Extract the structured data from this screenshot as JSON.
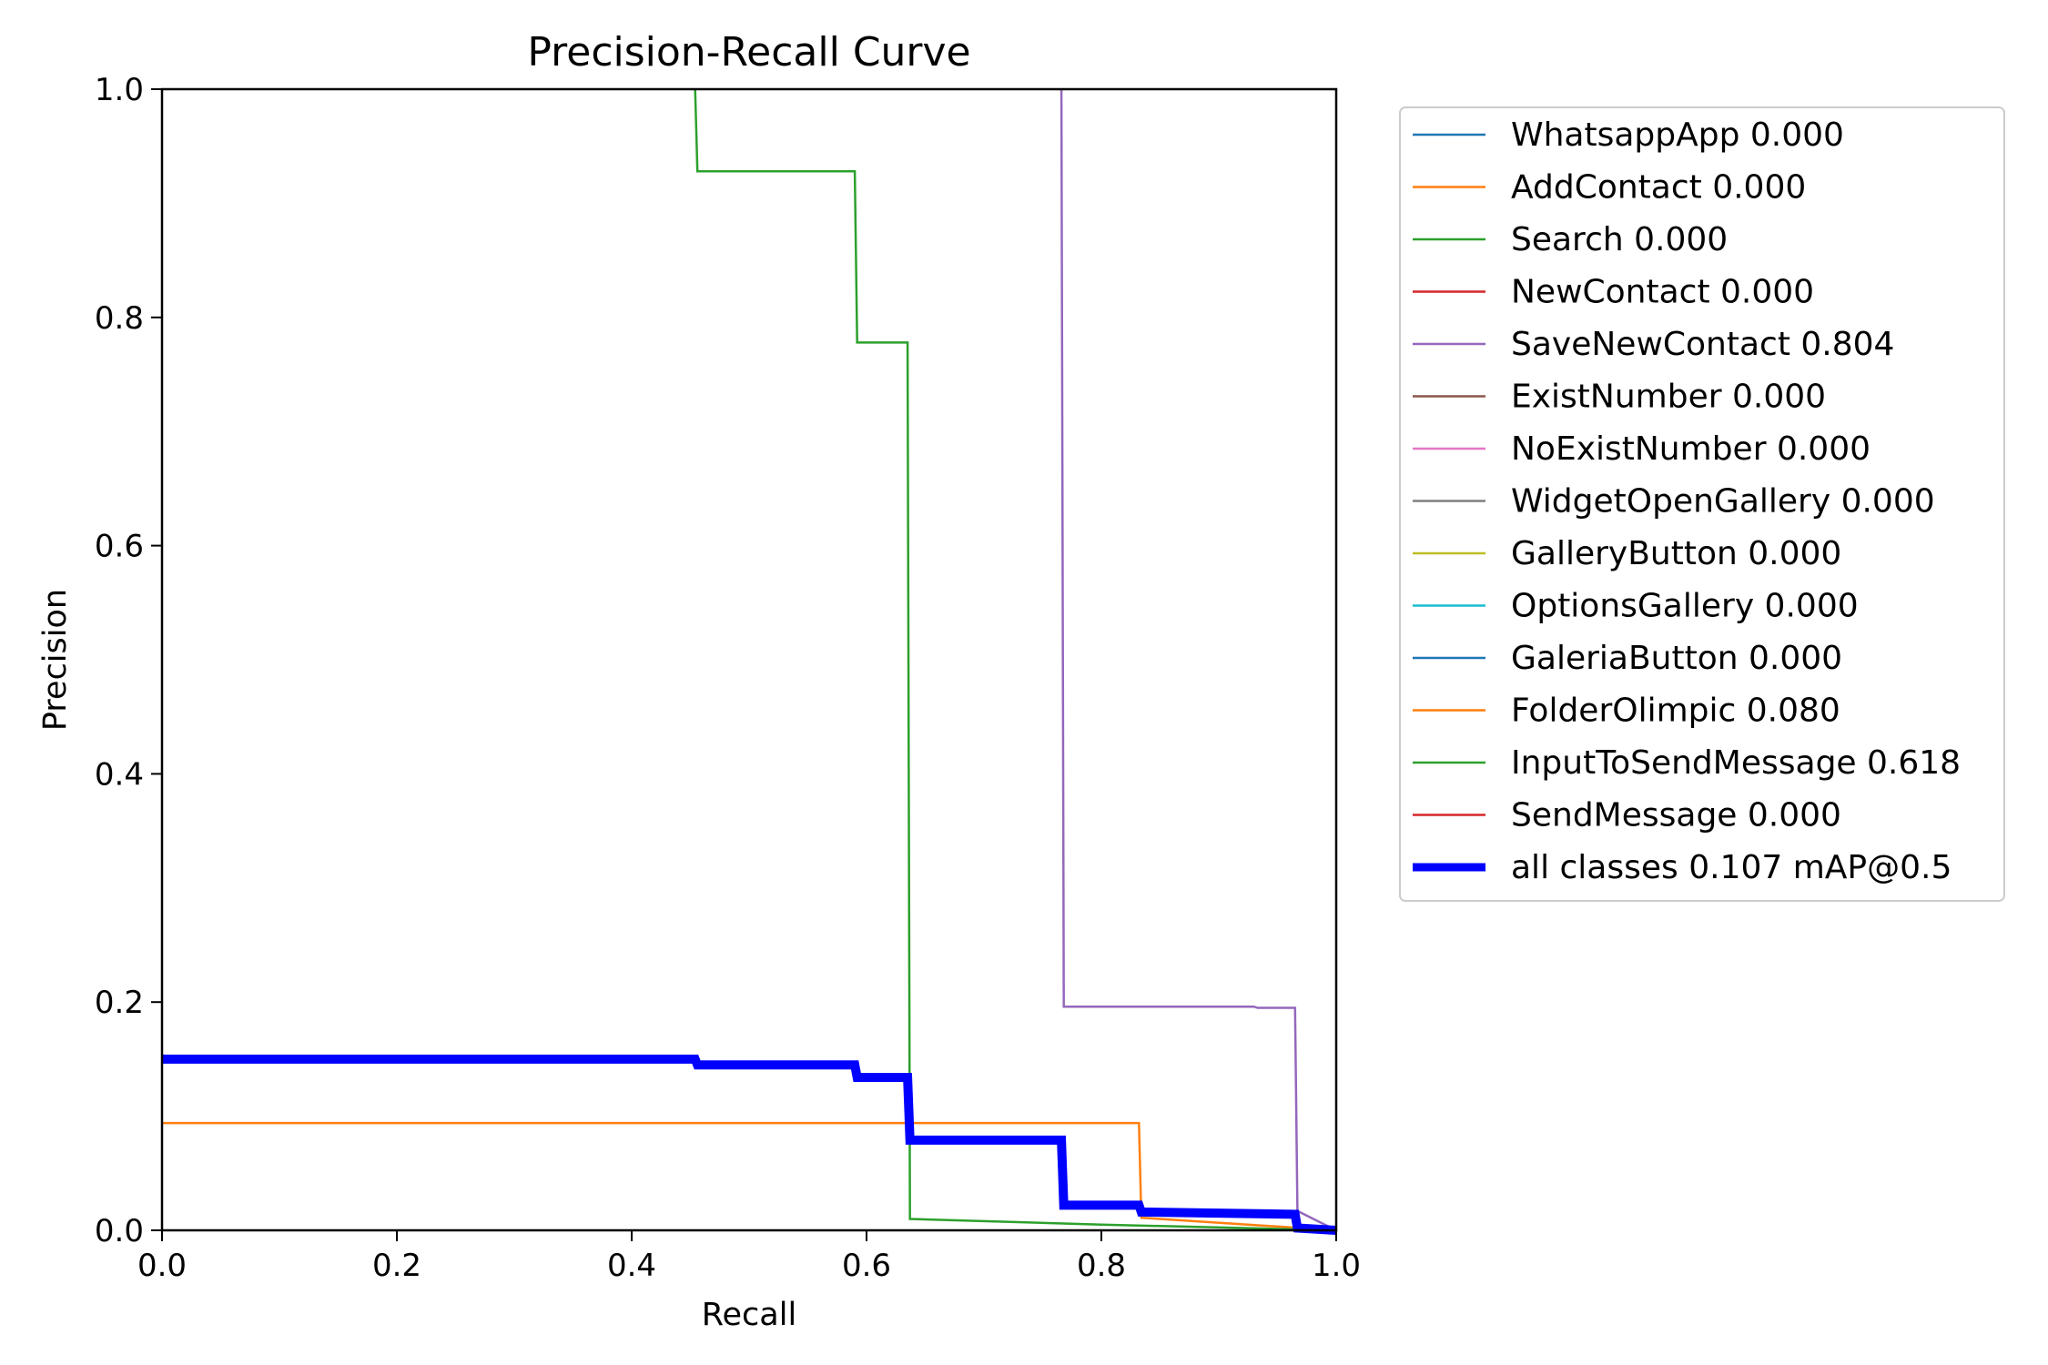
{
  "chart_data": {
    "type": "line",
    "title": "Precision-Recall Curve",
    "xlabel": "Recall",
    "ylabel": "Precision",
    "xlim": [
      0.0,
      1.0
    ],
    "ylim": [
      0.0,
      1.0
    ],
    "x_ticks": [
      "0.0",
      "0.2",
      "0.4",
      "0.6",
      "0.8",
      "1.0"
    ],
    "y_ticks": [
      "0.0",
      "0.2",
      "0.4",
      "0.6",
      "0.8",
      "1.0"
    ],
    "grid": false,
    "legend_position": "outside-right-top",
    "series": [
      {
        "name": "WhatsappApp 0.000",
        "color": "#1f77b4",
        "points": []
      },
      {
        "name": "AddContact 0.000",
        "color": "#ff7f0e",
        "points": []
      },
      {
        "name": "Search 0.000",
        "color": "#2ca02c",
        "points": []
      },
      {
        "name": "NewContact 0.000",
        "color": "#d62728",
        "points": []
      },
      {
        "name": "SaveNewContact 0.804",
        "color": "#9467bd",
        "points": [
          [
            0.766,
            1.0
          ],
          [
            0.768,
            0.196
          ],
          [
            0.93,
            0.196
          ],
          [
            0.933,
            0.195
          ],
          [
            0.965,
            0.195
          ],
          [
            0.967,
            0.017
          ],
          [
            1.0,
            0.0
          ]
        ]
      },
      {
        "name": "ExistNumber 0.000",
        "color": "#8c564b",
        "points": []
      },
      {
        "name": "NoExistNumber 0.000",
        "color": "#e377c2",
        "points": []
      },
      {
        "name": "WidgetOpenGallery 0.000",
        "color": "#7f7f7f",
        "points": []
      },
      {
        "name": "GalleryButton 0.000",
        "color": "#bcbd22",
        "points": []
      },
      {
        "name": "OptionsGallery 0.000",
        "color": "#17becf",
        "points": []
      },
      {
        "name": "GaleriaButton 0.000",
        "color": "#1f77b4",
        "points": []
      },
      {
        "name": "FolderOlimpic 0.080",
        "color": "#ff7f0e",
        "points": [
          [
            0.0,
            0.094
          ],
          [
            0.832,
            0.094
          ],
          [
            0.834,
            0.011
          ],
          [
            1.0,
            0.0
          ]
        ]
      },
      {
        "name": "InputToSendMessage 0.618",
        "color": "#2ca02c",
        "points": [
          [
            0.454,
            1.0
          ],
          [
            0.456,
            0.928
          ],
          [
            0.59,
            0.928
          ],
          [
            0.592,
            0.778
          ],
          [
            0.635,
            0.778
          ],
          [
            0.637,
            0.01
          ],
          [
            0.8,
            0.005
          ],
          [
            1.0,
            0.0
          ]
        ]
      },
      {
        "name": "SendMessage 0.000",
        "color": "#d62728",
        "points": []
      },
      {
        "name": "all classes 0.107 mAP@0.5",
        "color": "#0000ff",
        "width": "bold",
        "points": [
          [
            0.0,
            0.15
          ],
          [
            0.454,
            0.15
          ],
          [
            0.456,
            0.145
          ],
          [
            0.59,
            0.145
          ],
          [
            0.592,
            0.134
          ],
          [
            0.635,
            0.134
          ],
          [
            0.637,
            0.079
          ],
          [
            0.766,
            0.079
          ],
          [
            0.768,
            0.022
          ],
          [
            0.832,
            0.022
          ],
          [
            0.834,
            0.016
          ],
          [
            0.965,
            0.014
          ],
          [
            0.967,
            0.002
          ],
          [
            1.0,
            0.0
          ]
        ]
      }
    ]
  }
}
